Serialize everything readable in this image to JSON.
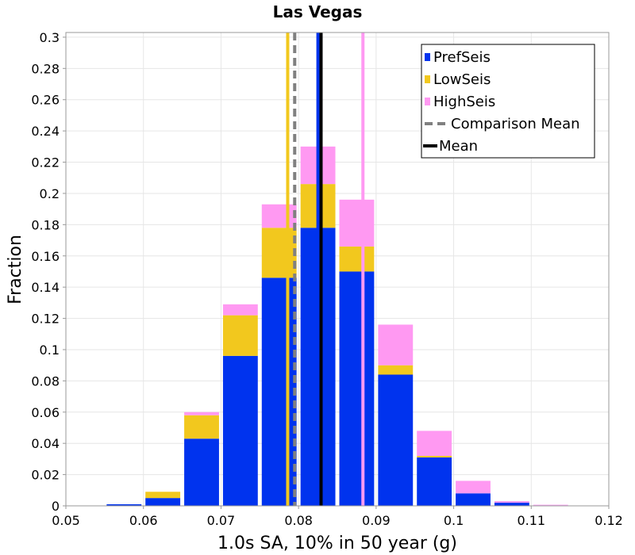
{
  "chart_data": {
    "type": "bar",
    "stacked": true,
    "title": "Las Vegas",
    "xlabel": "1.0s SA, 10% in 50 year (g)",
    "ylabel": "Fraction",
    "xlim": [
      0.05,
      0.12
    ],
    "ylim": [
      0,
      0.303
    ],
    "x_ticks": [
      0.05,
      0.06,
      0.07,
      0.08,
      0.09,
      0.1,
      0.11,
      0.12
    ],
    "x_tick_labels": [
      "0.05",
      "0.06",
      "0.07",
      "0.08",
      "0.09",
      "0.1",
      "0.11",
      "0.12"
    ],
    "y_ticks": [
      0,
      0.02,
      0.04,
      0.06,
      0.08,
      0.1,
      0.12,
      0.14,
      0.16,
      0.18,
      0.2,
      0.22,
      0.24,
      0.26,
      0.28,
      0.3
    ],
    "y_tick_labels": [
      "0",
      "0.02",
      "0.04",
      "0.06",
      "0.08",
      "0.1",
      "0.12",
      "0.14",
      "0.16",
      "0.18",
      "0.2",
      "0.22",
      "0.24",
      "0.26",
      "0.28",
      "0.3"
    ],
    "bin_width": 0.005,
    "bin_centers": [
      0.0575,
      0.0625,
      0.0675,
      0.0725,
      0.0775,
      0.0825,
      0.0875,
      0.0925,
      0.0975,
      0.1025,
      0.1075,
      0.1125
    ],
    "series": [
      {
        "name": "PrefSeis",
        "color": "#0033ee",
        "values": [
          0.001,
          0.005,
          0.043,
          0.096,
          0.146,
          0.178,
          0.15,
          0.084,
          0.031,
          0.008,
          0.002,
          0.0003
        ]
      },
      {
        "name": "LowSeis",
        "color": "#f2c81e",
        "values": [
          0,
          0.004,
          0.015,
          0.026,
          0.032,
          0.028,
          0.016,
          0.006,
          0.001,
          0,
          0,
          0
        ]
      },
      {
        "name": "HighSeis",
        "color": "#ff99f2",
        "values": [
          0,
          0,
          0.002,
          0.007,
          0.015,
          0.024,
          0.03,
          0.026,
          0.016,
          0.008,
          0.001,
          0.0004
        ]
      }
    ],
    "lines": [
      {
        "name": "LowSeis mean",
        "x": 0.0786,
        "color": "#f2c81e",
        "style": "solid"
      },
      {
        "name": "HighSeis mean",
        "x": 0.0883,
        "color": "#ff99f2",
        "style": "solid"
      },
      {
        "name": "PrefSeis mean",
        "x": 0.0825,
        "color": "#0033ee",
        "style": "solid"
      },
      {
        "name": "Comparison Mean",
        "x": 0.0795,
        "color": "#808080",
        "style": "dashed"
      },
      {
        "name": "Mean",
        "x": 0.0829,
        "color": "#000000",
        "style": "solid"
      }
    ],
    "legend": {
      "position": "top-right",
      "entries": [
        {
          "label": "PrefSeis",
          "color": "#0033ee",
          "kind": "box"
        },
        {
          "label": "LowSeis",
          "color": "#f2c81e",
          "kind": "box"
        },
        {
          "label": "HighSeis",
          "color": "#ff99f2",
          "kind": "box"
        },
        {
          "label": "Comparison Mean",
          "color": "#808080",
          "kind": "dashed-line"
        },
        {
          "label": "Mean",
          "color": "#000000",
          "kind": "line"
        }
      ]
    },
    "grid": true
  }
}
